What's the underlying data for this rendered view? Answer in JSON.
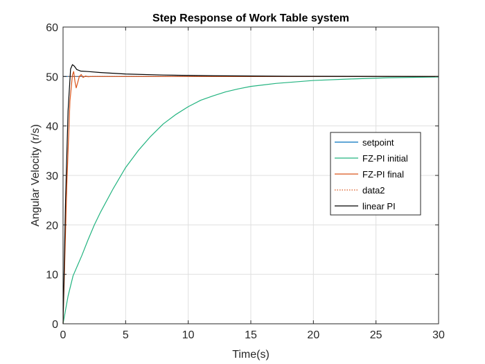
{
  "chart_data": {
    "type": "line",
    "title": "Step Response of Work Table system",
    "xlabel": "Time(s)",
    "ylabel": "Angular Velocity (r/s)",
    "xlim": [
      0,
      30
    ],
    "ylim": [
      0,
      60
    ],
    "x_ticks": [
      "0",
      "5",
      "10",
      "15",
      "20",
      "25",
      "30"
    ],
    "y_ticks": [
      "0",
      "10",
      "20",
      "30",
      "40",
      "50",
      "60"
    ],
    "grid": true,
    "legend_position": "right-middle",
    "series": [
      {
        "name": "setpoint",
        "color": "#0072bd",
        "style": "solid",
        "points": [
          [
            0,
            50
          ],
          [
            30,
            50
          ]
        ]
      },
      {
        "name": "FZ-PI initial",
        "color": "#21b37f",
        "style": "solid",
        "points": [
          [
            0,
            0
          ],
          [
            0.4,
            5.6
          ],
          [
            0.8,
            9.7
          ],
          [
            1.5,
            13.8
          ],
          [
            2,
            17.0
          ],
          [
            2.5,
            20.0
          ],
          [
            3,
            22.6
          ],
          [
            4,
            27.3
          ],
          [
            5,
            31.6
          ],
          [
            6,
            35.0
          ],
          [
            7,
            37.9
          ],
          [
            8,
            40.4
          ],
          [
            9,
            42.3
          ],
          [
            10,
            43.9
          ],
          [
            11,
            45.2
          ],
          [
            12,
            46.1
          ],
          [
            13,
            46.9
          ],
          [
            14,
            47.5
          ],
          [
            15,
            48.0
          ],
          [
            17,
            48.6
          ],
          [
            20,
            49.2
          ],
          [
            23,
            49.5
          ],
          [
            26,
            49.75
          ],
          [
            30,
            49.9
          ]
        ]
      },
      {
        "name": "FZ-PI final",
        "color": "#d95319",
        "style": "solid",
        "points": [
          [
            0,
            0
          ],
          [
            0.3,
            28
          ],
          [
            0.55,
            45
          ],
          [
            0.75,
            50.3
          ],
          [
            0.85,
            51.0
          ],
          [
            0.95,
            49.0
          ],
          [
            1.05,
            47.7
          ],
          [
            1.15,
            48.6
          ],
          [
            1.3,
            50.0
          ],
          [
            1.45,
            50.4
          ],
          [
            1.6,
            49.8
          ],
          [
            1.8,
            50.1
          ],
          [
            2.0,
            49.95
          ],
          [
            2.3,
            50.0
          ],
          [
            30,
            50.0
          ]
        ]
      },
      {
        "name": "data2",
        "color": "#d95319",
        "style": "dotted",
        "points": [
          [
            0,
            50
          ],
          [
            30,
            50
          ]
        ]
      },
      {
        "name": "linear PI",
        "color": "#000000",
        "style": "solid",
        "points": [
          [
            0,
            0
          ],
          [
            0.2,
            25
          ],
          [
            0.4,
            43
          ],
          [
            0.6,
            51.5
          ],
          [
            0.75,
            52.4
          ],
          [
            0.9,
            52.1
          ],
          [
            1.1,
            51.4
          ],
          [
            1.4,
            51.1
          ],
          [
            2,
            51.0
          ],
          [
            3,
            50.8
          ],
          [
            5,
            50.5
          ],
          [
            8,
            50.3
          ],
          [
            12,
            50.15
          ],
          [
            18,
            50.05
          ],
          [
            30,
            50.0
          ]
        ]
      }
    ]
  }
}
